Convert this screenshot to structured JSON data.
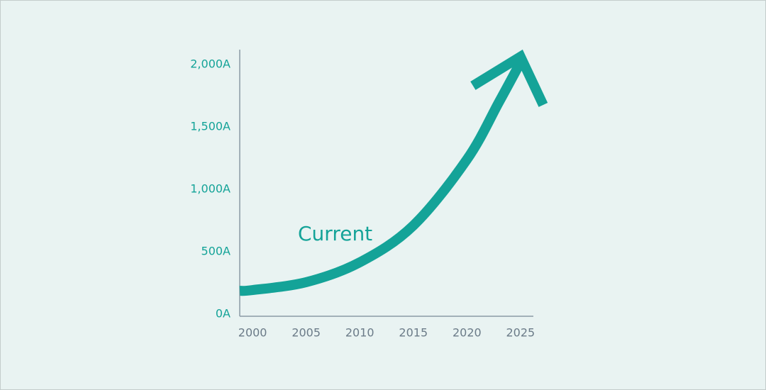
{
  "chart_data": {
    "type": "line",
    "x": [
      1998.8,
      2000,
      2005,
      2010,
      2015,
      2020,
      2023,
      2025
    ],
    "series": [
      {
        "name": "Current",
        "color": "#14a398",
        "values": [
          187,
          193,
          256,
          415,
          710,
          1239,
          1700,
          2017
        ]
      }
    ],
    "xlim": [
      1998.8,
      2026.2
    ],
    "xticks": [
      2000,
      2005,
      2010,
      2015,
      2020,
      2025
    ],
    "ylim": [
      -17,
      2119
    ],
    "yticks": [
      {
        "value": 0,
        "label": "0A"
      },
      {
        "value": 500,
        "label": "500A"
      },
      {
        "value": 1000,
        "label": "1,000A"
      },
      {
        "value": 1500,
        "label": "1,500A"
      },
      {
        "value": 2000,
        "label": "2,000A"
      }
    ],
    "grid": false
  }
}
